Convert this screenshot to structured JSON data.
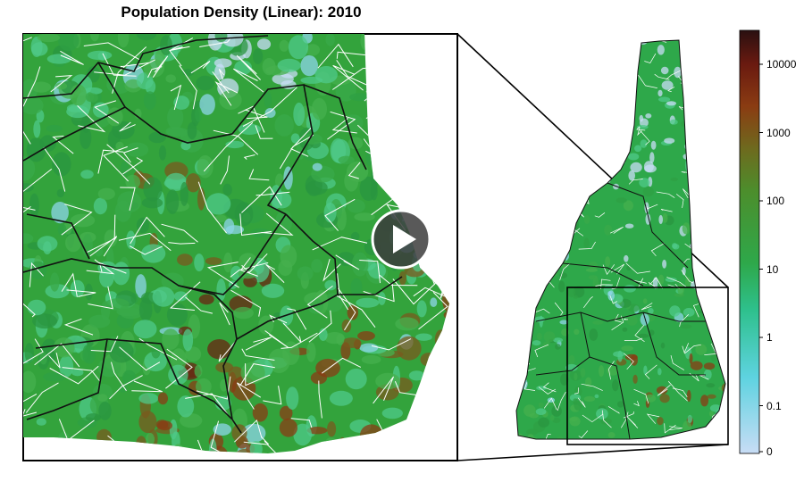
{
  "title": "Population Density (Linear): 2010",
  "legend": {
    "ticks": [
      {
        "label": "10000",
        "value": 10000
      },
      {
        "label": "1000",
        "value": 1000
      },
      {
        "label": "100",
        "value": 100
      },
      {
        "label": "10",
        "value": 10
      },
      {
        "label": "1",
        "value": 1
      },
      {
        "label": "0.1",
        "value": 0.1
      },
      {
        "label": "0",
        "value": 0
      }
    ],
    "colors": [
      "#c8dcf5",
      "#5ed3e0",
      "#2ec08c",
      "#2ea84a",
      "#4c8e2c",
      "#6e6a1e",
      "#8a3c12",
      "#6a1a10",
      "#2a1010"
    ]
  },
  "play_button": {
    "icon": "play-icon"
  }
}
